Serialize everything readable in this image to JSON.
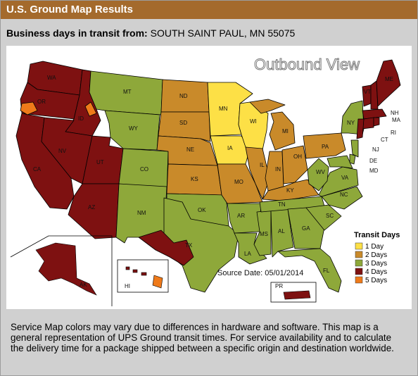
{
  "header": {
    "title": "U.S. Ground Map Results"
  },
  "transit": {
    "label": "Business days in transit from:",
    "origin": "SOUTH SAINT PAUL, MN 55075"
  },
  "map": {
    "view_title": "Outbound View",
    "source_date": "Source Date: 05/01/2014",
    "legend": {
      "title": "Transit Days",
      "items": [
        {
          "label": "1 Day",
          "color": "#fde046"
        },
        {
          "label": "2 Days",
          "color": "#c98a2a"
        },
        {
          "label": "3 Days",
          "color": "#8ea83a"
        },
        {
          "label": "4 Days",
          "color": "#7e1111"
        },
        {
          "label": "5 Days",
          "color": "#ef7a1a"
        }
      ]
    },
    "colors": {
      "day1": "#fde046",
      "day2": "#c98a2a",
      "day3": "#8ea83a",
      "day4": "#7e1111",
      "day5": "#ef7a1a"
    },
    "state_labels": {
      "WA": "WA",
      "OR": "OR",
      "ID": "ID",
      "CA": "CA",
      "NV": "NV",
      "UT": "UT",
      "AZ": "AZ",
      "MT": "MT",
      "WY": "WY",
      "CO": "CO",
      "NM": "NM",
      "ND": "ND",
      "SD": "SD",
      "NE": "NE",
      "KS": "KS",
      "OK": "OK",
      "TX": "TX",
      "MN": "MN",
      "IA": "IA",
      "MO": "MO",
      "AR": "AR",
      "LA": "LA",
      "WI": "WI",
      "IL": "IL",
      "MI": "MI",
      "IN": "IN",
      "OH": "OH",
      "KY": "KY",
      "TN": "TN",
      "MS": "MS",
      "AL": "AL",
      "GA": "GA",
      "FL": "FL",
      "SC": "SC",
      "NC": "NC",
      "VA": "VA",
      "WV": "WV",
      "PA": "PA",
      "NY": "NY",
      "VT": "VT",
      "NH": "NH",
      "ME": "ME",
      "MA": "MA",
      "RI": "RI",
      "CT": "CT",
      "NJ": "NJ",
      "DE": "DE",
      "MD": "MD",
      "AK": "AK",
      "HI": "HI",
      "PR": "PR"
    }
  },
  "footer": {
    "note": "Service Map colors may vary due to differences in hardware and software. This map is a general representation of UPS Ground transit times. For service availability and to calculate the delivery time for a package shipped between a specific origin and destination worldwide."
  }
}
